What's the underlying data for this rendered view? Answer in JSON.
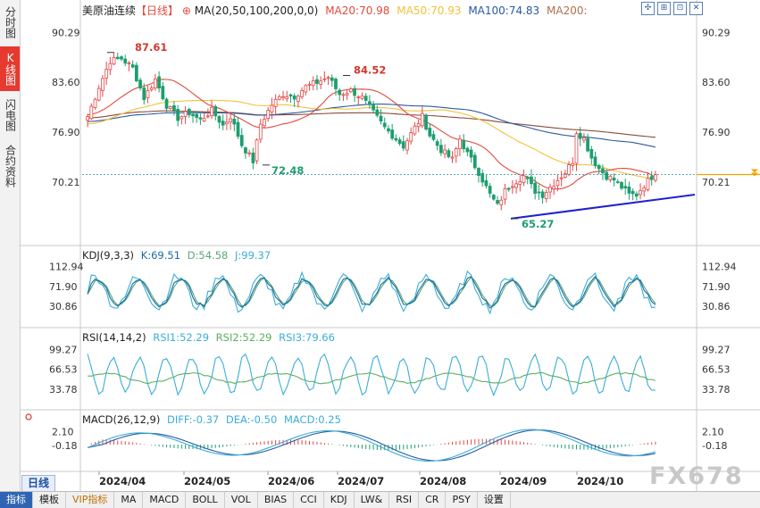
{
  "sidebar": {
    "tabs": [
      {
        "label": "分时图",
        "active": false
      },
      {
        "label": "K线图",
        "active": true
      },
      {
        "label": "闪电图",
        "active": false
      },
      {
        "label": "合约资料",
        "active": false
      }
    ]
  },
  "header": {
    "title": "美原油连续",
    "period_tag": "【日线】",
    "settings_icon": "⊕",
    "ma_label": "MA(20,50,100,200,0,0)",
    "ma20": "MA20:70.98",
    "ma50": "MA50:70.93",
    "ma100": "MA100:74.83",
    "ma200": "MA200:"
  },
  "toolbar_icons": [
    {
      "name": "crosshair-icon",
      "glyph": "✣"
    },
    {
      "name": "zoom-icon",
      "glyph": "⊞"
    },
    {
      "name": "grid-icon",
      "glyph": "⊡"
    },
    {
      "name": "close-icon",
      "glyph": "✕"
    }
  ],
  "colors": {
    "up": "#e54747",
    "down": "#1d9e6f",
    "ma20": "#e24b3c",
    "ma50": "#f2c13a",
    "ma100": "#2a5aa0",
    "ma200": "#8b4a3a",
    "trendline": "#2020d0",
    "kdj_k": "#1a6aa0",
    "kdj_d": "#5aa876",
    "kdj_j": "#3aaed8",
    "dashed": "#2a8a9a",
    "marker": "#f2a400"
  },
  "kdj": {
    "title": "KDJ(9,3,3)",
    "k": "K:69.51",
    "d": "D:54.58",
    "j": "J:99.37"
  },
  "rsi": {
    "title": "RSI(14,14,2)",
    "rsi1": "RSI1:52.29",
    "rsi2": "RSI2:52.29",
    "rsi3": "RSI3:79.66"
  },
  "macd": {
    "title": "MACD(26,12,9)",
    "diff": "DIFF:-0.37",
    "dea": "DEA:-0.50",
    "macd": "MACD:0.25"
  },
  "bottom": {
    "period": "日线",
    "tabs": [
      {
        "label": "指标",
        "active": true,
        "vip": false
      },
      {
        "label": "模板",
        "active": false,
        "vip": false
      },
      {
        "label": "VIP指标",
        "active": false,
        "vip": true
      },
      {
        "label": "MA",
        "active": false,
        "vip": false
      },
      {
        "label": "MACD",
        "active": false,
        "vip": false
      },
      {
        "label": "BOLL",
        "active": false,
        "vip": false
      },
      {
        "label": "VOL",
        "active": false,
        "vip": false
      },
      {
        "label": "BIAS",
        "active": false,
        "vip": false
      },
      {
        "label": "CCI",
        "active": false,
        "vip": false
      },
      {
        "label": "KDJ",
        "active": false,
        "vip": false
      },
      {
        "label": "LW&",
        "active": false,
        "vip": false
      },
      {
        "label": "RSI",
        "active": false,
        "vip": false
      },
      {
        "label": "CR",
        "active": false,
        "vip": false
      },
      {
        "label": "PSY",
        "active": false,
        "vip": false
      },
      {
        "label": "设置",
        "active": false,
        "vip": false
      }
    ]
  },
  "watermark": "FX678",
  "chart_data": [
    {
      "type": "candlestick",
      "title": "美原油连续",
      "x_labels": [
        "2024/04",
        "2024/05",
        "2024/06",
        "2024/07",
        "2024/08",
        "2024/09",
        "2024/10"
      ],
      "y_ticks": [
        "90.29",
        "83.60",
        "76.90",
        "70.21"
      ],
      "y_range": [
        62.5,
        92.5
      ],
      "annotations": [
        {
          "label": "87.61",
          "value": 87.61,
          "kind": "high"
        },
        {
          "label": "84.52",
          "value": 84.52,
          "kind": "high"
        },
        {
          "label": "72.48",
          "value": 72.48,
          "kind": "low"
        },
        {
          "label": "65.27",
          "value": 65.27,
          "kind": "low"
        }
      ],
      "anchor_closes": [
        [
          0,
          79
        ],
        [
          3,
          83
        ],
        [
          6,
          86.5
        ],
        [
          9,
          86.8
        ],
        [
          12,
          85.5
        ],
        [
          15,
          81.5
        ],
        [
          18,
          84
        ],
        [
          21,
          80.5
        ],
        [
          24,
          78.8
        ],
        [
          27,
          79.5
        ],
        [
          30,
          78.5
        ],
        [
          33,
          79.8
        ],
        [
          36,
          77.8
        ],
        [
          38,
          79
        ],
        [
          41,
          75.2
        ],
        [
          44,
          73
        ],
        [
          46,
          78
        ],
        [
          49,
          80.6
        ],
        [
          52,
          82
        ],
        [
          55,
          81.7
        ],
        [
          58,
          83
        ],
        [
          61,
          83.6
        ],
        [
          64,
          84.3
        ],
        [
          67,
          82
        ],
        [
          70,
          82.5
        ],
        [
          73,
          81.5
        ],
        [
          76,
          79.5
        ],
        [
          79,
          77.5
        ],
        [
          82,
          76
        ],
        [
          84,
          75
        ],
        [
          87,
          77.5
        ],
        [
          89,
          79
        ],
        [
          91,
          76.5
        ],
        [
          94,
          74.5
        ],
        [
          97,
          73.2
        ],
        [
          99,
          76
        ],
        [
          101,
          74
        ],
        [
          104,
          71.5
        ],
        [
          107,
          68.5
        ],
        [
          109,
          67
        ],
        [
          111,
          69
        ],
        [
          113,
          70
        ],
        [
          116,
          71
        ],
        [
          119,
          69
        ],
        [
          121,
          68.5
        ],
        [
          124,
          70
        ],
        [
          127,
          71.5
        ],
        [
          129,
          73
        ],
        [
          130,
          77
        ],
        [
          132,
          76
        ],
        [
          134,
          73.5
        ],
        [
          136,
          72
        ],
        [
          138,
          71
        ],
        [
          140,
          70.5
        ],
        [
          142,
          69.5
        ],
        [
          144,
          68.5
        ],
        [
          146,
          68.5
        ],
        [
          148,
          69.8
        ],
        [
          150,
          70.9
        ],
        [
          151,
          71.2
        ]
      ],
      "ma20_last": 70.98,
      "ma50_last": 70.93,
      "ma100_last": 74.83,
      "trendline": {
        "from_value": 65.27,
        "to_value": 68.5
      }
    },
    {
      "type": "line",
      "title": "KDJ(9,3,3)",
      "y_ticks": [
        "112.94",
        "71.90",
        "30.86"
      ],
      "series": [
        {
          "name": "K",
          "last": 69.51
        },
        {
          "name": "D",
          "last": 54.58
        },
        {
          "name": "J",
          "last": 99.37
        }
      ]
    },
    {
      "type": "line",
      "title": "RSI(14,14,2)",
      "y_ticks": [
        "99.27",
        "66.53",
        "33.78"
      ],
      "series": [
        {
          "name": "RSI1",
          "last": 52.29
        },
        {
          "name": "RSI2",
          "last": 52.29
        },
        {
          "name": "RSI3",
          "last": 79.66
        }
      ]
    },
    {
      "type": "bar",
      "title": "MACD(26,12,9)",
      "y_ticks": [
        "2.10",
        "-0.18"
      ],
      "series": [
        {
          "name": "DIFF",
          "last": -0.37
        },
        {
          "name": "DEA",
          "last": -0.5
        },
        {
          "name": "MACD",
          "last": 0.25
        }
      ]
    }
  ]
}
